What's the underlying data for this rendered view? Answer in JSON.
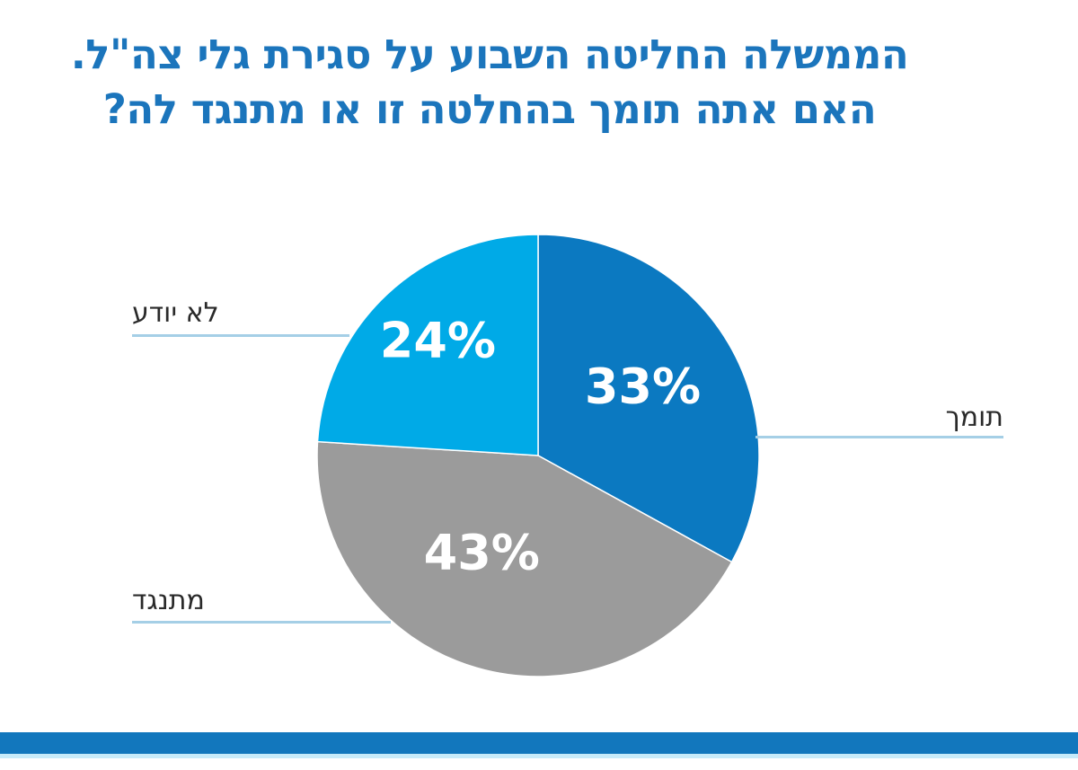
{
  "title": {
    "line1": "הממשלה החליטה השבוע על סגירת גלי צה\"ל.",
    "line2": "האם אתה תומך בהחלטה זו או מתנגד לה?"
  },
  "chart_data": {
    "type": "pie",
    "title": "הממשלה החליטה השבוע על סגירת גלי צה\"ל. האם אתה תומך בהחלטה זו או מתנגד לה?",
    "start_angle_deg": 0,
    "direction": "clockwise",
    "legend_position": "callout-labels",
    "slices": [
      {
        "label": "תומך",
        "value": 33,
        "display": "33%",
        "color": "#0b79c1",
        "callout_side": "right"
      },
      {
        "label": "מתנגד",
        "value": 43,
        "display": "43%",
        "color": "#9b9b9b",
        "callout_side": "left"
      },
      {
        "label": "לא יודע",
        "value": 24,
        "display": "24%",
        "color": "#00aae7",
        "callout_side": "left"
      }
    ]
  },
  "styles": {
    "title_color": "#1b75bc",
    "leader_line_color": "#a5cfe6",
    "bottom_bar_color": "#1277bd",
    "bottom_bar_glow": "#c7ebfa",
    "percent_text_color": "#ffffff",
    "callout_text_color": "#2a2a2a",
    "background": "#ffffff",
    "slice_seam_color": "#ffffff"
  }
}
